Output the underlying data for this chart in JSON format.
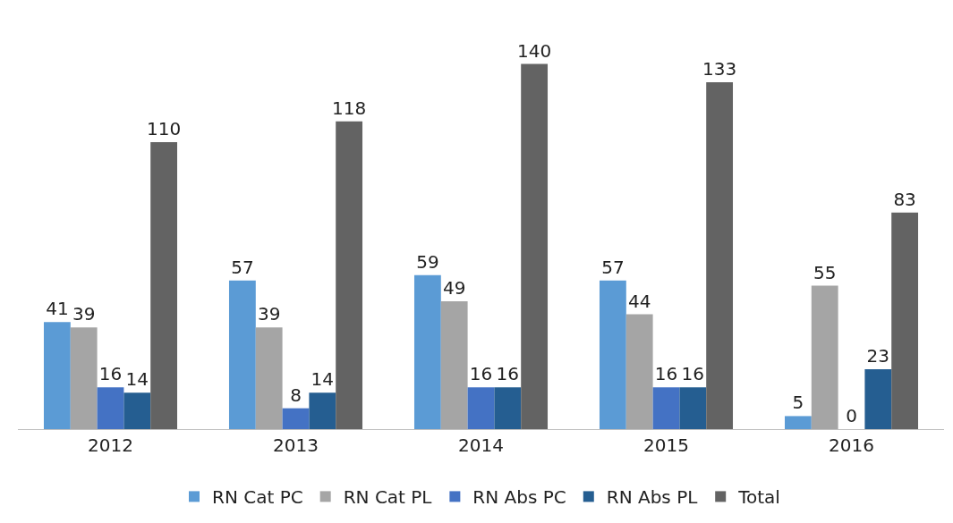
{
  "chart_data": {
    "type": "bar",
    "categories": [
      "2012",
      "2013",
      "2014",
      "2015",
      "2016"
    ],
    "series": [
      {
        "name": "RN Cat PC",
        "color": "#5b9bd5",
        "values": [
          41,
          57,
          59,
          57,
          5
        ]
      },
      {
        "name": "RN Cat PL",
        "color": "#a5a5a5",
        "values": [
          39,
          39,
          49,
          44,
          55
        ]
      },
      {
        "name": "RN Abs PC",
        "color": "#4472c4",
        "values": [
          16,
          8,
          16,
          16,
          0
        ]
      },
      {
        "name": "RN Abs PL",
        "color": "#255e91",
        "values": [
          14,
          14,
          16,
          16,
          23
        ]
      },
      {
        "name": "Total",
        "color": "#636363",
        "values": [
          110,
          118,
          140,
          133,
          83
        ]
      }
    ],
    "data_labels": true,
    "legend": "bottom"
  }
}
